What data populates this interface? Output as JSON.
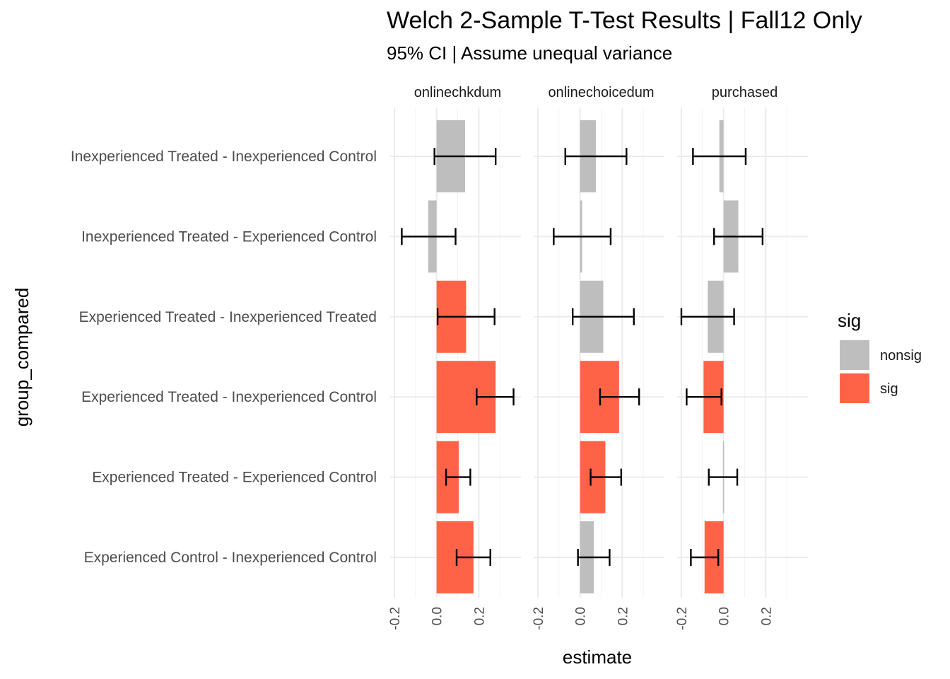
{
  "chart_data": {
    "type": "bar",
    "orientation": "horizontal",
    "title": "Welch 2-Sample T-Test Results | Fall12 Only",
    "subtitle": "95% CI | Assume unequal variance",
    "xlabel": "estimate",
    "ylabel": "group_compared",
    "xlim": [
      -0.22,
      0.4
    ],
    "x_ticks": [
      -0.2,
      0.0,
      0.2
    ],
    "x_tick_labels": [
      "-0.2",
      "0.0",
      "0.2"
    ],
    "grid": true,
    "legend": {
      "title": "sig",
      "position": "right",
      "entries": [
        {
          "label": "nonsig",
          "color": "#bebebe"
        },
        {
          "label": "sig",
          "color": "#ff6347"
        }
      ]
    },
    "categories": [
      "Inexperienced Treated - Inexperienced Control",
      "Inexperienced Treated - Experienced Control",
      "Experienced Treated - Inexperienced Treated",
      "Experienced Treated - Inexperienced Control",
      "Experienced Treated - Experienced Control",
      "Experienced Control - Inexperienced Control"
    ],
    "facets": [
      {
        "name": "onlinechkdum",
        "bars": [
          {
            "estimate": 0.135,
            "lower": -0.01,
            "upper": 0.28,
            "sig": "nonsig"
          },
          {
            "estimate": -0.04,
            "lower": -0.165,
            "upper": 0.09,
            "sig": "nonsig"
          },
          {
            "estimate": 0.14,
            "lower": 0.005,
            "upper": 0.275,
            "sig": "sig"
          },
          {
            "estimate": 0.28,
            "lower": 0.19,
            "upper": 0.365,
            "sig": "sig"
          },
          {
            "estimate": 0.105,
            "lower": 0.045,
            "upper": 0.16,
            "sig": "sig"
          },
          {
            "estimate": 0.175,
            "lower": 0.095,
            "upper": 0.255,
            "sig": "sig"
          }
        ]
      },
      {
        "name": "onlinechoicedum",
        "bars": [
          {
            "estimate": 0.075,
            "lower": -0.07,
            "upper": 0.22,
            "sig": "nonsig"
          },
          {
            "estimate": 0.01,
            "lower": -0.125,
            "upper": 0.145,
            "sig": "nonsig"
          },
          {
            "estimate": 0.11,
            "lower": -0.035,
            "upper": 0.255,
            "sig": "nonsig"
          },
          {
            "estimate": 0.185,
            "lower": 0.095,
            "upper": 0.28,
            "sig": "sig"
          },
          {
            "estimate": 0.12,
            "lower": 0.05,
            "upper": 0.195,
            "sig": "sig"
          },
          {
            "estimate": 0.065,
            "lower": -0.01,
            "upper": 0.14,
            "sig": "nonsig"
          }
        ]
      },
      {
        "name": "purchased",
        "bars": [
          {
            "estimate": -0.02,
            "lower": -0.145,
            "upper": 0.105,
            "sig": "nonsig"
          },
          {
            "estimate": 0.07,
            "lower": -0.045,
            "upper": 0.185,
            "sig": "nonsig"
          },
          {
            "estimate": -0.075,
            "lower": -0.2,
            "upper": 0.05,
            "sig": "nonsig"
          },
          {
            "estimate": -0.095,
            "lower": -0.175,
            "upper": -0.01,
            "sig": "sig"
          },
          {
            "estimate": -0.003,
            "lower": -0.07,
            "upper": 0.065,
            "sig": "nonsig"
          },
          {
            "estimate": -0.09,
            "lower": -0.155,
            "upper": -0.025,
            "sig": "sig"
          }
        ]
      }
    ]
  }
}
